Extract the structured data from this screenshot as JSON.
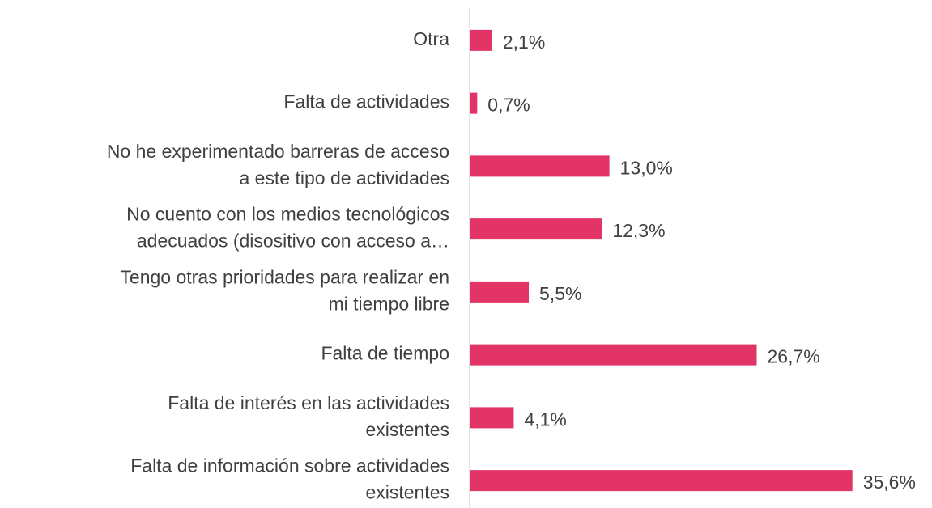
{
  "chart_data": {
    "type": "barh",
    "categories": [
      [
        "Otra"
      ],
      [
        "Falta de actividades"
      ],
      [
        "No he experimentado barreras de acceso",
        "a este tipo de actividades"
      ],
      [
        "No cuento con los medios tecnológicos",
        "adecuados (disositivo con acceso a…"
      ],
      [
        "Tengo otras prioridades para realizar en",
        "mi tiempo libre"
      ],
      [
        "Falta de tiempo"
      ],
      [
        "Falta de interés en las actividades",
        "existentes"
      ],
      [
        "Falta de información sobre actividades",
        "existentes"
      ]
    ],
    "values": [
      2.1,
      0.7,
      13.0,
      12.3,
      5.5,
      26.7,
      4.1,
      35.6
    ],
    "value_labels": [
      "2,1%",
      "0,7%",
      "13,0%",
      "12,3%",
      "5,5%",
      "26,7%",
      "4,1%",
      "35,6%"
    ],
    "color": "#e33467",
    "xlim": [
      0,
      36
    ]
  }
}
